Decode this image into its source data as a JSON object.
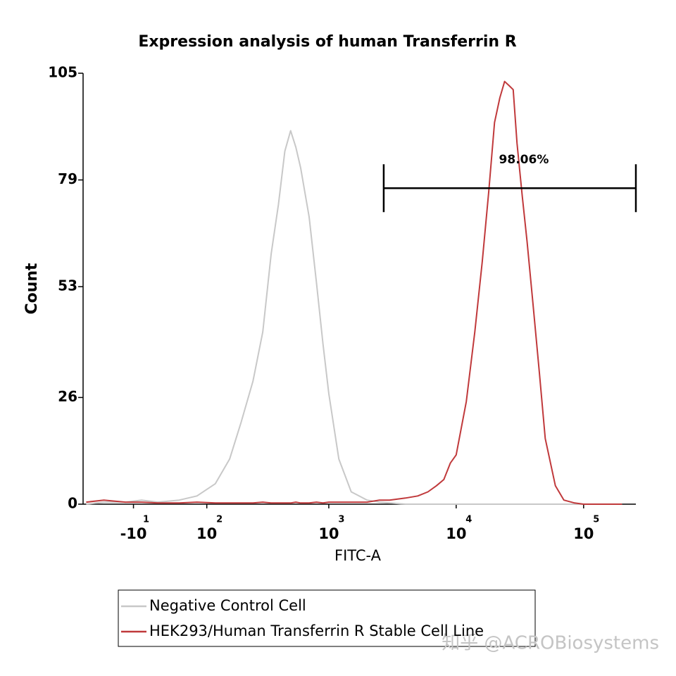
{
  "chart_data": {
    "type": "line",
    "title": "Expression analysis of human Transferrin R",
    "x_label": "FITC-A",
    "y_label": "Count",
    "xscale": "asinh",
    "xlim": [
      -86,
      257000
    ],
    "xticks": [
      {
        "value": -10,
        "label": "-10",
        "exponent": "1"
      },
      {
        "value": 100,
        "label": "10",
        "exponent": "2"
      },
      {
        "value": 1000,
        "label": "10",
        "exponent": "3"
      },
      {
        "value": 10000,
        "label": "10",
        "exponent": "4"
      },
      {
        "value": 100000,
        "label": "10",
        "exponent": "5"
      }
    ],
    "ylim": [
      0,
      105
    ],
    "yticks": [
      0,
      26,
      53,
      79,
      105
    ],
    "legend": "below",
    "x": [
      -80,
      -50,
      -20,
      0,
      20,
      50,
      80,
      120,
      160,
      200,
      250,
      300,
      350,
      400,
      450,
      500,
      550,
      600,
      700,
      800,
      900,
      1000,
      1200,
      1500,
      2000,
      2500,
      3000,
      4000,
      5000,
      6000,
      7000,
      8000,
      9000,
      10000,
      12000,
      14000,
      16000,
      18000,
      20000,
      22000,
      24000,
      26000,
      28000,
      30000,
      33000,
      36000,
      40000,
      45000,
      50000,
      60000,
      70000,
      85000,
      100000,
      150000,
      200000
    ],
    "series": [
      {
        "name": "Negative Control Cell",
        "color": "#c8c8c8",
        "values": [
          0,
          0.5,
          0.5,
          1,
          0.5,
          1,
          2,
          5,
          11,
          20,
          30,
          42,
          61,
          73,
          86,
          91,
          87,
          82,
          70,
          54,
          39,
          27,
          11,
          3,
          1,
          0.5,
          0.3,
          0,
          0,
          0,
          0,
          0,
          0,
          0,
          0,
          0,
          0,
          0,
          0,
          0,
          0,
          0,
          0,
          0,
          0,
          0,
          0,
          0,
          0,
          0,
          0,
          0,
          0,
          0,
          0
        ]
      },
      {
        "name": "HEK293/Human Transferrin R Stable Cell Line",
        "color": "#c0393b",
        "values": [
          0.5,
          1,
          0.5,
          0.5,
          0.3,
          0.3,
          0.5,
          0.3,
          0.3,
          0.3,
          0.3,
          0.5,
          0.3,
          0.3,
          0.3,
          0.3,
          0.5,
          0.3,
          0.3,
          0.5,
          0.3,
          0.5,
          0.5,
          0.5,
          0.5,
          1,
          1,
          1.5,
          2,
          3,
          4.5,
          6,
          10,
          12,
          25,
          42,
          59,
          76,
          93,
          99,
          103,
          102,
          101,
          88,
          75,
          64,
          49,
          32,
          16,
          4.5,
          1,
          0.3,
          0,
          0,
          0
        ]
      }
    ],
    "gate": {
      "label": "98.06%",
      "x": [
        2700,
        257000
      ],
      "y": 77
    },
    "watermark": "知乎 @ACROBiosystems"
  }
}
